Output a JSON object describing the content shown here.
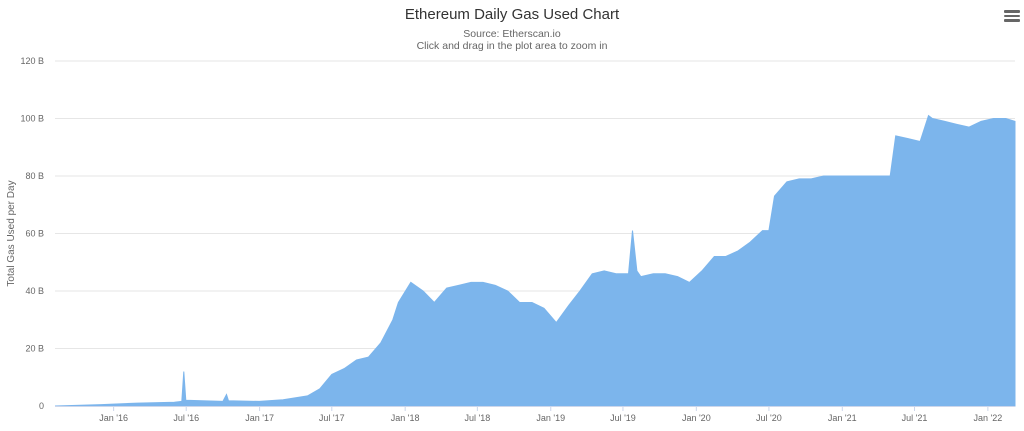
{
  "chart_data": {
    "type": "area",
    "title": "Ethereum Daily Gas Used Chart",
    "subtitle": "Source: Etherscan.io",
    "subtitle2": "Click and drag in the plot area to zoom in",
    "ylabel": "Total Gas Used per Day",
    "ylim": [
      0,
      120
    ],
    "yunit": "B",
    "yticks": [
      "0",
      "20 B",
      "40 B",
      "60 B",
      "80 B",
      "100 B",
      "120 B"
    ],
    "xticks": [
      "Jan '16",
      "Jul '16",
      "Jan '17",
      "Jul '17",
      "Jan '18",
      "Jul '18",
      "Jan '19",
      "Jul '19",
      "Jan '20",
      "Jul '20",
      "Jan '21",
      "Jul '21",
      "Jan '22"
    ],
    "grid": true,
    "legend": "none",
    "color": "#7cb5ec",
    "series": [
      {
        "x": [
          "2015-08-07",
          "2015-12-01",
          "2016-03-01",
          "2016-06-01",
          "2016-06-20",
          "2016-06-25",
          "2016-06-30",
          "2016-10-01",
          "2016-10-10",
          "2016-10-15",
          "2016-12-31",
          "2017-03-01",
          "2017-05-01",
          "2017-06-01",
          "2017-07-01",
          "2017-08-01",
          "2017-09-01",
          "2017-10-01",
          "2017-11-01",
          "2017-12-01",
          "2017-12-15",
          "2018-01-15",
          "2018-02-15",
          "2018-03-15",
          "2018-04-15",
          "2018-05-15",
          "2018-06-15",
          "2018-07-15",
          "2018-08-15",
          "2018-09-15",
          "2018-10-15",
          "2018-11-15",
          "2018-12-15",
          "2019-01-15",
          "2019-02-15",
          "2019-03-15",
          "2019-04-15",
          "2019-05-15",
          "2019-06-15",
          "2019-07-15",
          "2019-07-25",
          "2019-08-05",
          "2019-08-15",
          "2019-09-15",
          "2019-10-15",
          "2019-11-15",
          "2019-12-15",
          "2020-01-15",
          "2020-02-15",
          "2020-03-15",
          "2020-04-15",
          "2020-05-15",
          "2020-06-15",
          "2020-07-01",
          "2020-07-15",
          "2020-08-15",
          "2020-09-15",
          "2020-10-15",
          "2020-11-15",
          "2020-12-15",
          "2021-01-15",
          "2021-02-15",
          "2021-03-15",
          "2021-04-15",
          "2021-05-01",
          "2021-05-15",
          "2021-06-15",
          "2021-07-15",
          "2021-08-05",
          "2021-08-15",
          "2021-09-15",
          "2021-10-15",
          "2021-11-15",
          "2021-12-15",
          "2022-01-15",
          "2022-02-15",
          "2022-03-10"
        ],
        "y": [
          0,
          0.5,
          1,
          1.3,
          1.6,
          12,
          2,
          1.6,
          4,
          1.8,
          1.6,
          2.2,
          3.5,
          6,
          11,
          13,
          16,
          17,
          22,
          30,
          36,
          43,
          40,
          36,
          41,
          42,
          43,
          43,
          42,
          40,
          36,
          36,
          34,
          29,
          35,
          40,
          46,
          47,
          46,
          46,
          61,
          47,
          45,
          46,
          46,
          45,
          43,
          47,
          52,
          52,
          54,
          57,
          61,
          61,
          73,
          78,
          79,
          79,
          80,
          80,
          80,
          80,
          80,
          80,
          80,
          94,
          93,
          92,
          101,
          100,
          99,
          98,
          97,
          99,
          100,
          100,
          99
        ]
      }
    ]
  },
  "ui": {
    "menu_icon": "hamburger-icon"
  }
}
